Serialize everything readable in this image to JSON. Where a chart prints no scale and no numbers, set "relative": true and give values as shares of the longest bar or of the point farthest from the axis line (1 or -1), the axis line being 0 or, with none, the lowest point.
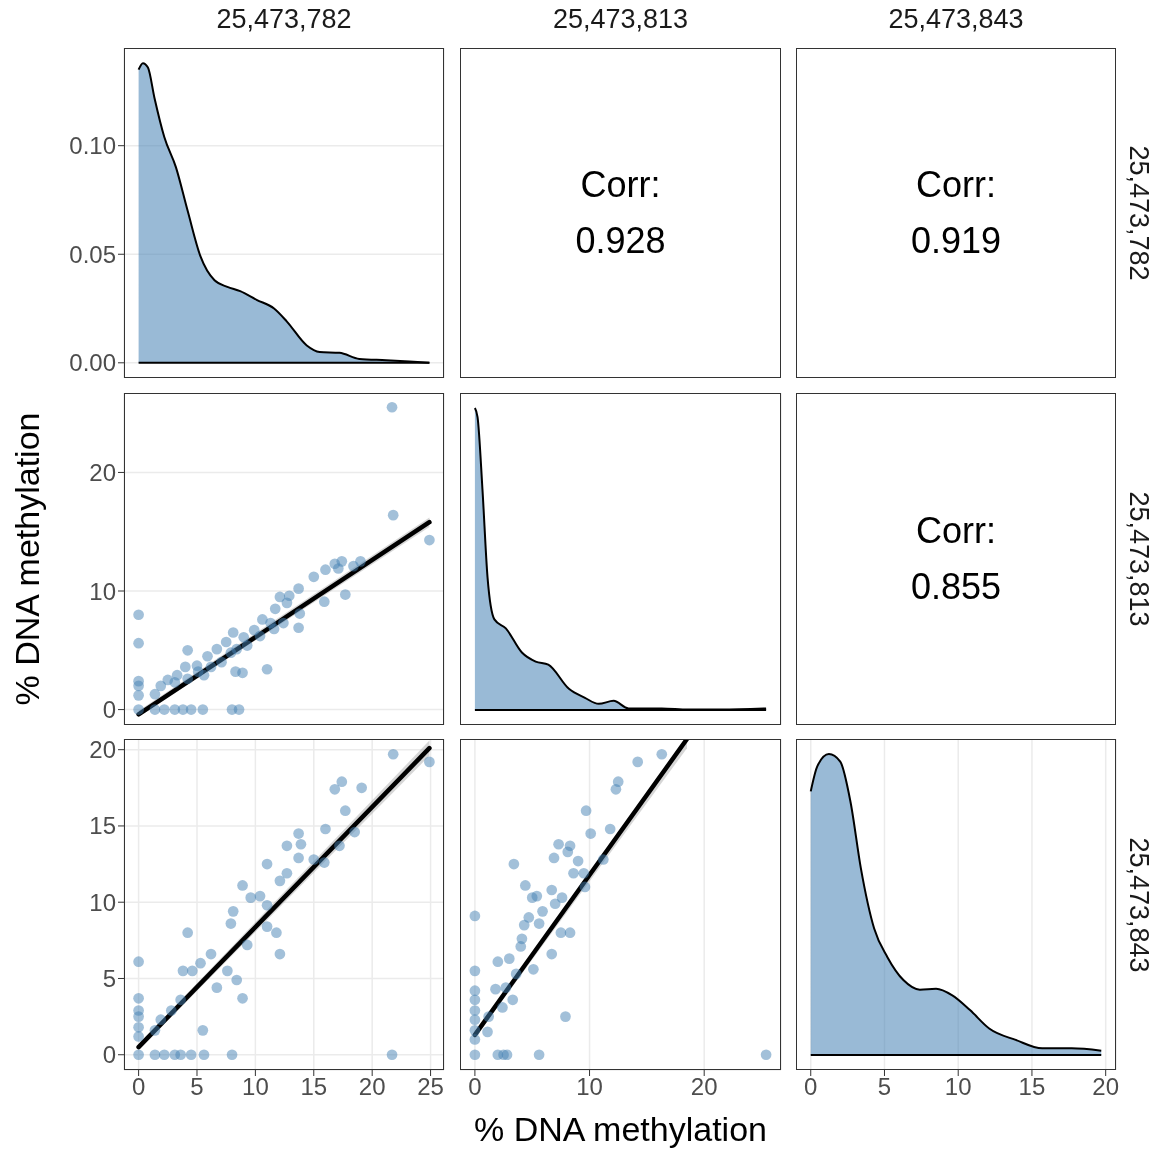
{
  "chart_data": [
    {
      "type": "area",
      "title": "25,473,782",
      "xlim": [
        -1.25,
        26.15
      ],
      "xticks": [
        0,
        5,
        10,
        15,
        20,
        25
      ],
      "ylim": [
        -0.007,
        0.145
      ],
      "yticks": [
        {
          "value": 0,
          "label": "0.00"
        },
        {
          "value": 0.05,
          "label": "0.05"
        },
        {
          "value": 0.1,
          "label": "0.10"
        }
      ],
      "grid": true,
      "tick_labels": "y",
      "series": [
        {
          "color": "#4682b4",
          "x": [
            0,
            0.37,
            0.8,
            1.36,
            2.2,
            3.2,
            4.2,
            5.3,
            6.5,
            7.6,
            8.7,
            10.1,
            11.6,
            12.7,
            14.4,
            15.5,
            17.2,
            18.9,
            21.2,
            23.2,
            24.9
          ],
          "values": [
            0.135,
            0.138,
            0.136,
            0.122,
            0.104,
            0.09,
            0.07,
            0.049,
            0.038,
            0.035,
            0.033,
            0.029,
            0.025,
            0.019,
            0.008,
            0.005,
            0.0046,
            0.0018,
            0.0012,
            0.0006,
            0
          ]
        }
      ]
    },
    {
      "type": "other",
      "title": "25,473,813",
      "annotations": [
        "Corr:",
        "0.928"
      ]
    },
    {
      "type": "other",
      "title": "25,473,843",
      "y2label": "25,473,782",
      "annotations": [
        "Corr:",
        "0.919"
      ]
    },
    {
      "type": "scatter",
      "ylabel": "% DNA methylation",
      "xlim": [
        -1.25,
        26.15
      ],
      "xticks": [
        0,
        5,
        10,
        15,
        20,
        25
      ],
      "ylim": [
        -1.3,
        26.7
      ],
      "yticks": [
        0,
        10,
        20
      ],
      "grid": true,
      "tick_labels": "y",
      "series": [
        {
          "type": "scatter",
          "marker": "circle",
          "color": "#4682b4",
          "x": [
            21.7,
            21.8,
            24.9,
            19.0,
            18.4,
            17.4,
            16.8,
            17.1,
            16.0,
            15.0,
            17.7,
            13.7,
            12.9,
            12.1,
            12.7,
            15.9,
            11.7,
            13.8,
            13.7,
            12.4,
            10.6,
            9.9,
            9.0,
            8.1,
            7.5,
            6.7,
            5.9,
            5.0,
            4.2,
            4.0,
            11.0,
            8.3,
            8.9,
            3.3,
            2.5,
            1.9,
            1.4,
            0,
            0,
            0,
            0,
            0,
            0,
            1.4,
            2.2,
            3.1,
            3.8,
            4.5,
            5.5,
            8.0,
            8.6,
            5.6,
            7.1,
            7.9,
            9.3,
            10.4,
            11.6,
            5.1,
            4.2,
            3.1,
            6.2,
            8.4,
            11.3
          ],
          "values": [
            25.5,
            16.4,
            14.3,
            12.5,
            12.1,
            12.5,
            12.3,
            11.9,
            11.8,
            11.2,
            9.7,
            10.2,
            9.6,
            9.5,
            9.0,
            9.1,
            8.5,
            8.1,
            6.9,
            7.3,
            7.6,
            6.7,
            6.1,
            6.5,
            5.7,
            5.1,
            4.5,
            3.7,
            5.0,
            3.6,
            3.4,
            3.2,
            3.1,
            2.9,
            2.5,
            2.0,
            1.3,
            8.0,
            5.6,
            2.4,
            2.0,
            1.2,
            0,
            0,
            0,
            0,
            0,
            0,
            0,
            0,
            0,
            2.9,
            4.0,
            4.8,
            5.4,
            6.2,
            6.8,
            3.2,
            2.6,
            2.3,
            3.6,
            5.1,
            7.3
          ]
        },
        {
          "type": "line",
          "marker": "none",
          "color": "#000000",
          "x": [
            0,
            24.9
          ],
          "values": [
            -0.4,
            15.8
          ],
          "lower": [
            -0.6,
            15.4
          ],
          "upper": [
            -0.1,
            16.2
          ]
        }
      ]
    },
    {
      "type": "area",
      "xlim": [
        -1.3,
        26.7
      ],
      "xticks": [
        0,
        10,
        20
      ],
      "relative": true,
      "grid": true,
      "tick_labels": false,
      "series": [
        {
          "color": "#4682b4",
          "x": [
            0,
            0.23,
            0.66,
            1.1,
            1.7,
            2.7,
            4.1,
            5.3,
            6.4,
            8.2,
            9.6,
            10.8,
            12.1,
            13.4,
            16.3,
            18.6,
            21.5,
            25.4
          ],
          "values": [
            1,
            0.97,
            0.73,
            0.44,
            0.3,
            0.27,
            0.19,
            0.16,
            0.15,
            0.07,
            0.04,
            0.02,
            0.03,
            0.005,
            0.005,
            0.001,
            0.001,
            0.005
          ]
        }
      ]
    },
    {
      "type": "other",
      "y2label": "25,473,813",
      "annotations": [
        "Corr:",
        "0.855"
      ]
    },
    {
      "type": "scatter",
      "xlim": [
        -1.25,
        26.15
      ],
      "xticks": [
        0,
        5,
        10,
        15,
        20,
        25
      ],
      "ylim": [
        -1,
        20.7
      ],
      "yticks": [
        0,
        5,
        10,
        15,
        20
      ],
      "grid": true,
      "series": [
        {
          "type": "scatter",
          "marker": "circle",
          "color": "#4682b4",
          "x": [
            21.8,
            24.9,
            17.4,
            16.8,
            19.1,
            17.7,
            16.0,
            18.5,
            17.2,
            13.7,
            13.9,
            12.7,
            13.7,
            15.0,
            15.9,
            11.0,
            12.7,
            12.1,
            8.9,
            10.4,
            9.6,
            11.0,
            11.8,
            12.1,
            11.0,
            8.1,
            7.9,
            9.3,
            4.2,
            6.2,
            5.3,
            3.8,
            4.6,
            7.6,
            8.4,
            6.7,
            8.9,
            5.5,
            3.6,
            2.8,
            1.9,
            1.4,
            0,
            0,
            0,
            0,
            0,
            0,
            0,
            1.4,
            2.2,
            3.1,
            3.6,
            4.5,
            5.6,
            8.0,
            21.7
          ],
          "values": [
            19.7,
            19.2,
            17.9,
            17.4,
            17.5,
            16.0,
            14.8,
            14.6,
            13.7,
            14.5,
            13.8,
            13.7,
            12.9,
            12.8,
            12.6,
            12.5,
            11.9,
            11.4,
            11.1,
            10.4,
            10.3,
            9.8,
            8.0,
            6.6,
            8.4,
            9.4,
            8.6,
            7.2,
            8.0,
            6.6,
            6.0,
            5.5,
            5.5,
            5.5,
            4.9,
            4.4,
            3.7,
            1.6,
            3.6,
            2.9,
            2.3,
            1.6,
            6.1,
            3.7,
            2.9,
            2.5,
            1.8,
            1.2,
            0,
            0,
            0,
            0,
            0,
            0,
            0,
            0,
            0
          ]
        },
        {
          "type": "line",
          "marker": "none",
          "color": "#000000",
          "x": [
            0,
            24.9
          ],
          "values": [
            0.5,
            20.1
          ],
          "lower": [
            0.3,
            19.6
          ],
          "upper": [
            0.7,
            20.6
          ]
        }
      ]
    },
    {
      "type": "scatter",
      "xlabel": "% DNA methylation",
      "xlim": [
        -1.3,
        26.7
      ],
      "xticks": [
        0,
        10,
        20
      ],
      "ylim": [
        -1,
        20.7
      ],
      "yticks": [
        0,
        5,
        10,
        15,
        20
      ],
      "grid": true,
      "tick_labels": "x",
      "series": [
        {
          "type": "scatter",
          "marker": "circle",
          "color": "#4682b4",
          "x": [
            16.3,
            14.2,
            12.5,
            12.3,
            9.7,
            10.1,
            11.8,
            7.3,
            8.3,
            8.1,
            6.9,
            9.0,
            3.4,
            11.2,
            8.6,
            9.5,
            4.4,
            6.7,
            7.6,
            5.4,
            7.0,
            5.0,
            9.6,
            5.9,
            4.7,
            5.6,
            7.5,
            8.3,
            4.3,
            4.1,
            6.7,
            2.0,
            3.0,
            4.0,
            5.1,
            3.6,
            2.7,
            1.8,
            3.3,
            2.4,
            1.2,
            7.9,
            1.1,
            0,
            0,
            0,
            0,
            0,
            0,
            0,
            0,
            0,
            2.0,
            2.5,
            2.8,
            5.6,
            25.4
          ],
          "values": [
            19.7,
            19.2,
            17.9,
            17.4,
            16.0,
            14.5,
            14.8,
            13.8,
            13.7,
            13.3,
            12.9,
            12.7,
            12.5,
            12.8,
            11.9,
            11.9,
            11.1,
            10.8,
            10.3,
            10.4,
            9.9,
            10.3,
            11.0,
            9.4,
            9.0,
            8.6,
            8.0,
            8.0,
            8.5,
            7.6,
            6.6,
            6.1,
            6.3,
            7.1,
            5.6,
            5.3,
            4.4,
            4.3,
            3.6,
            3.1,
            2.5,
            2.5,
            1.5,
            9.1,
            5.5,
            4.2,
            3.6,
            2.9,
            2.3,
            1.6,
            1.0,
            0,
            0,
            0,
            0,
            0,
            0
          ]
        },
        {
          "type": "line",
          "marker": "none",
          "color": "#000000",
          "x": [
            0,
            18.5
          ],
          "values": [
            1.3,
            20.7
          ],
          "lower": [
            1.1,
            20.1
          ],
          "upper": [
            1.5,
            20.7
          ]
        }
      ]
    },
    {
      "type": "area",
      "y2label": "25,473,843",
      "xlim": [
        -1,
        20.7
      ],
      "xticks": [
        0,
        5,
        10,
        15,
        20
      ],
      "relative": true,
      "grid": true,
      "tick_labels": "x",
      "series": [
        {
          "color": "#4682b4",
          "x": [
            0,
            0.45,
            1.23,
            2.0,
            2.7,
            3.4,
            4.3,
            5.2,
            6.3,
            7.4,
            8.5,
            9.6,
            10.8,
            12.1,
            13.9,
            15.7,
            17.7,
            19.7
          ],
          "values": [
            0.876,
            0.96,
            1,
            0.975,
            0.84,
            0.62,
            0.42,
            0.325,
            0.248,
            0.217,
            0.22,
            0.198,
            0.149,
            0.088,
            0.05,
            0.022,
            0.022,
            0.014
          ]
        }
      ]
    }
  ]
}
